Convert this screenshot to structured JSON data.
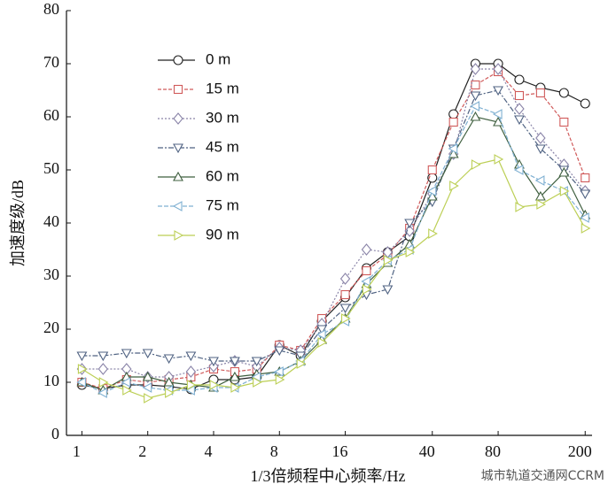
{
  "chart_data": {
    "type": "line",
    "x_label": "1/3倍频程中心频率/Hz",
    "y_label": "加速度级/dB",
    "watermark": "城市轨道交通网CCRM",
    "xscale": "log",
    "x": [
      1,
      1.25,
      1.6,
      2,
      2.5,
      3.15,
      4,
      5,
      6.3,
      8,
      10,
      12.5,
      16,
      20,
      25,
      31.5,
      40,
      50,
      63,
      80,
      100,
      125,
      160,
      200
    ],
    "xlim": [
      0.85,
      215
    ],
    "xticks": [
      1,
      2,
      4,
      8,
      16,
      40,
      80,
      200
    ],
    "ylim": [
      0,
      80
    ],
    "yticks": [
      0,
      10,
      20,
      30,
      40,
      50,
      60,
      70,
      80
    ],
    "grid": false,
    "legend": "upper left",
    "series": [
      {
        "name": "0 m",
        "color": "#222222",
        "dash": "none",
        "marker": "circle",
        "values": [
          9.5,
          8.8,
          9.5,
          9.5,
          9.2,
          8.7,
          10.5,
          10.5,
          11,
          17,
          15,
          21.5,
          26,
          31.5,
          34.5,
          37.5,
          48.5,
          60.5,
          70,
          70,
          67,
          65.5,
          64.5,
          62.5
        ]
      },
      {
        "name": "15 m",
        "color": "#d05a5a",
        "dash": "4,2",
        "marker": "square",
        "values": [
          10,
          8.8,
          10.5,
          10,
          10.5,
          11,
          12.5,
          12,
          12.5,
          17,
          16,
          22,
          26.5,
          31,
          34,
          39,
          50,
          59,
          66,
          68.5,
          64,
          64.5,
          59,
          48.5
        ]
      },
      {
        "name": "30 m",
        "color": "#8a84a8",
        "dash": "2,2",
        "marker": "diamond",
        "values": [
          12.5,
          12.5,
          12.5,
          11,
          11,
          12,
          13,
          14,
          13,
          16.5,
          16,
          21,
          29.5,
          35,
          34.5,
          38.5,
          45.5,
          53,
          69,
          69,
          61.5,
          56,
          51,
          46
        ]
      },
      {
        "name": "45 m",
        "color": "#4f6282",
        "dash": "6,2,2,2",
        "marker": "triangle-down",
        "values": [
          15,
          15,
          15.5,
          15.5,
          14.5,
          15,
          14,
          14,
          14,
          16,
          15,
          20,
          24,
          26.5,
          27.5,
          40,
          44,
          54,
          64,
          65,
          59.5,
          54,
          50,
          45.5
        ]
      },
      {
        "name": "60 m",
        "color": "#3f5f3f",
        "dash": "none",
        "marker": "triangle-up",
        "values": [
          10,
          8.5,
          11,
          11,
          10,
          9.5,
          9,
          11,
          11.5,
          12,
          14,
          18,
          22,
          28.5,
          32.5,
          36,
          45,
          53,
          60,
          59,
          51,
          45,
          49.5,
          41.5
        ]
      },
      {
        "name": "75 m",
        "color": "#7fb0d2",
        "dash": "5,2",
        "marker": "triangle-left",
        "values": [
          10,
          8,
          10,
          9,
          8.5,
          8.5,
          9,
          9,
          11,
          12,
          14,
          19,
          21.5,
          29,
          33,
          35,
          46,
          54,
          62,
          60.5,
          50,
          48,
          46,
          41
        ]
      },
      {
        "name": "90 m",
        "color": "#bccf55",
        "dash": "none",
        "marker": "triangle-right",
        "values": [
          12.5,
          10,
          8.5,
          7,
          8,
          9.5,
          9.5,
          9,
          10,
          10.5,
          13.5,
          17.5,
          22,
          27.5,
          33,
          34.5,
          38,
          47,
          51,
          52,
          43,
          43.5,
          46,
          39
        ]
      }
    ]
  }
}
